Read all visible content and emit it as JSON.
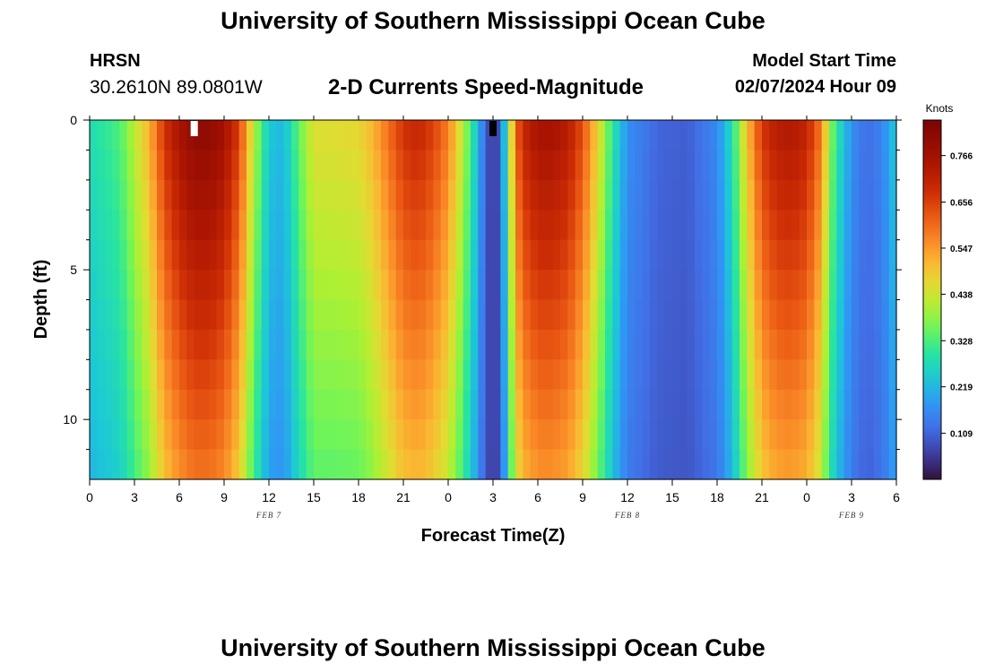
{
  "header": {
    "title": "University of Southern Mississippi Ocean Cube",
    "station_name": "HRSN",
    "station_coords": "30.2610N  89.0801W",
    "subtitle": "2-D Currents Speed-Magnitude",
    "start_label": "Model Start Time",
    "start_value": "02/07/2024 Hour 09"
  },
  "footer": {
    "title": "University of Southern Mississippi Ocean Cube"
  },
  "chart_data": {
    "type": "heatmap",
    "title": "2-D Currents Speed-Magnitude",
    "xlabel": "Forecast Time(Z)",
    "ylabel": "Depth (ft)",
    "x_start_hour": 0,
    "x_end_hour": 54,
    "x_tick_hours": [
      0,
      3,
      6,
      9,
      12,
      15,
      18,
      21,
      24,
      27,
      30,
      33,
      36,
      39,
      42,
      45,
      48,
      51,
      54
    ],
    "x_tick_labels": [
      "0",
      "3",
      "6",
      "9",
      "12",
      "15",
      "18",
      "21",
      "0",
      "3",
      "6",
      "9",
      "12",
      "15",
      "18",
      "21",
      "0",
      "3",
      "6"
    ],
    "date_labels": [
      {
        "hour": 12,
        "label": "FEB 7"
      },
      {
        "hour": 36,
        "label": "FEB 8"
      },
      {
        "hour": 51,
        "label": "FEB 9"
      }
    ],
    "ylim": [
      0,
      12
    ],
    "y_major_ticks": [
      0,
      5,
      10
    ],
    "y_minor_ticks": [
      1,
      2,
      3,
      4,
      6,
      7,
      8,
      9,
      11
    ],
    "y_tick_labels": [
      "0",
      "5",
      "10"
    ],
    "time_step_hours": 0.5,
    "depth_levels": 12,
    "surface_speed_keyframes_hours": [
      0,
      2,
      4,
      5,
      6,
      7,
      8,
      9,
      10,
      11,
      12,
      13,
      14,
      15,
      16,
      18,
      19,
      20,
      21,
      22,
      23,
      24,
      25,
      26,
      26.5,
      27,
      27.5,
      28,
      28.5,
      29,
      30,
      31,
      32,
      33,
      34,
      35,
      36,
      38,
      40,
      42,
      43,
      44,
      45,
      46,
      47,
      48,
      49,
      49.5,
      50,
      51,
      52,
      53,
      53.5,
      54
    ],
    "surface_speed_keyframes_knots": [
      0.28,
      0.33,
      0.52,
      0.68,
      0.76,
      0.81,
      0.81,
      0.77,
      0.66,
      0.42,
      0.24,
      0.22,
      0.35,
      0.46,
      0.46,
      0.47,
      0.52,
      0.6,
      0.68,
      0.7,
      0.66,
      0.58,
      0.42,
      0.22,
      0.1,
      0.05,
      0.1,
      0.35,
      0.6,
      0.7,
      0.76,
      0.76,
      0.73,
      0.64,
      0.48,
      0.3,
      0.17,
      0.11,
      0.1,
      0.16,
      0.28,
      0.5,
      0.67,
      0.73,
      0.74,
      0.71,
      0.58,
      0.4,
      0.3,
      0.17,
      0.12,
      0.15,
      0.2,
      0.25
    ],
    "bottom_speed_factor": 0.7,
    "bottom_speed_offset_knots": 0.02,
    "colorbar": {
      "title": "Knots",
      "min": 0.0,
      "max": 0.85,
      "ticks": [
        0.109,
        0.219,
        0.328,
        0.438,
        0.547,
        0.656,
        0.766
      ],
      "tick_labels": [
        "0.109",
        "0.219",
        "0.328",
        "0.438",
        "0.547",
        "0.656",
        "0.766"
      ]
    },
    "markers": [
      {
        "hour": 7,
        "color": "#ffffff"
      },
      {
        "hour": 27,
        "color": "#000000"
      }
    ]
  }
}
